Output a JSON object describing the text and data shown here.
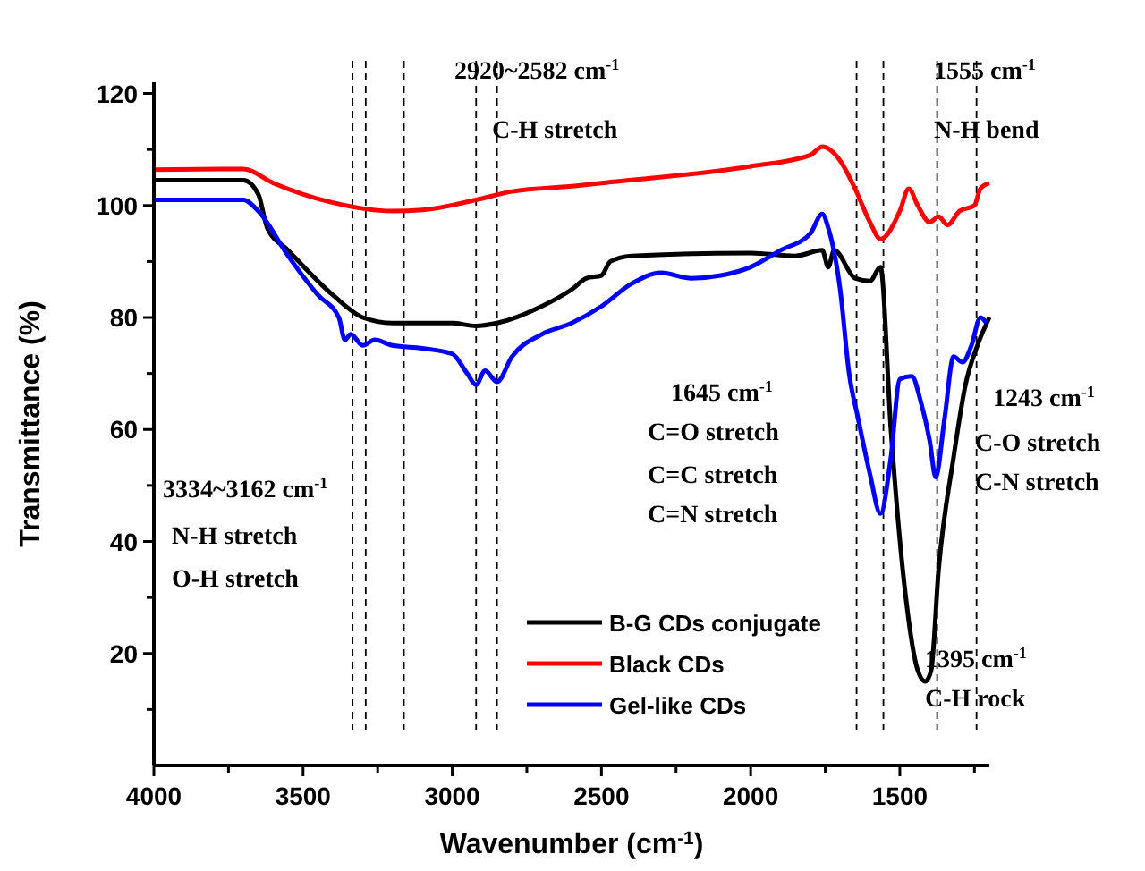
{
  "chart_data": {
    "type": "line",
    "xlabel": "Wavenumber (cm$^{-1}$)",
    "ylabel": "Transmittance (%)",
    "xlim": [
      4000,
      1200
    ],
    "ylim": [
      0,
      122
    ],
    "xticks": [
      4000,
      {
        "value": 3750,
        "label": null
      },
      3500,
      {
        "value": 3250,
        "label": null
      },
      3000,
      {
        "value": 2750,
        "label": null
      },
      2500,
      {
        "value": 2250,
        "label": null
      },
      2000,
      {
        "value": 1750,
        "label": null
      },
      1500,
      {
        "value": 1250,
        "label": null
      }
    ],
    "yticks": [
      {
        "value": 10,
        "label": null
      },
      20,
      {
        "value": 30,
        "label": null
      },
      40,
      {
        "value": 50,
        "label": null
      },
      60,
      {
        "value": 70,
        "label": null
      },
      80,
      {
        "value": 90,
        "label": null
      },
      100,
      {
        "value": 110,
        "label": null
      },
      120
    ],
    "grid": false,
    "legend": "bottom",
    "marker": "none",
    "line_style": "solid",
    "series": [
      {
        "name": "B-G CDs conjugate",
        "color": "#000000",
        "x": [
          4000,
          3700,
          3650,
          3620,
          3550,
          3400,
          3300,
          3200,
          3000,
          2920,
          2850,
          2700,
          2600,
          2550,
          2500,
          2470,
          2400,
          2000,
          1850,
          1760,
          1740,
          1720,
          1650,
          1600,
          1565,
          1530,
          1480,
          1440,
          1415,
          1395,
          1370,
          1320,
          1280,
          1240,
          1200
        ],
        "values": [
          104.5,
          104.5,
          102,
          96,
          92,
          84,
          80,
          79,
          79,
          78.5,
          79,
          82,
          85,
          87,
          87.5,
          90,
          91,
          91.5,
          91,
          92,
          89,
          92,
          87,
          86.5,
          89,
          60,
          30,
          17,
          15,
          17,
          35,
          55,
          68,
          75,
          80
        ]
      },
      {
        "name": "Black CDs",
        "color": "#ff0000",
        "x": [
          4000,
          3700,
          3600,
          3400,
          3200,
          3100,
          2920,
          2800,
          2582,
          2500,
          2000,
          1800,
          1760,
          1700,
          1650,
          1600,
          1565,
          1500,
          1470,
          1440,
          1400,
          1370,
          1340,
          1300,
          1250,
          1230,
          1200
        ],
        "values": [
          106.4,
          106.5,
          104,
          100.5,
          99,
          99.2,
          101,
          102.5,
          103.5,
          104,
          107,
          109,
          110.5,
          108,
          103,
          97,
          94,
          99,
          103,
          100,
          97,
          98,
          96.5,
          99,
          100,
          103,
          104
        ]
      },
      {
        "name": "Gel-like CDs",
        "color": "#0000ff",
        "x": [
          4000,
          3700,
          3650,
          3550,
          3450,
          3380,
          3360,
          3340,
          3300,
          3260,
          3200,
          3100,
          3000,
          2950,
          2920,
          2890,
          2850,
          2800,
          2700,
          2600,
          2500,
          2400,
          2300,
          2200,
          2100,
          2000,
          1900,
          1800,
          1760,
          1740,
          1700,
          1670,
          1640,
          1600,
          1565,
          1530,
          1500,
          1460,
          1430,
          1400,
          1380,
          1350,
          1320,
          1290,
          1260,
          1230,
          1210
        ],
        "values": [
          101,
          101,
          99,
          91,
          84,
          80,
          76,
          77,
          75,
          76,
          75,
          74.5,
          73.5,
          70,
          68,
          70.5,
          68.5,
          73,
          77,
          79,
          82,
          86,
          88,
          87,
          87.5,
          89,
          92,
          95,
          98.5,
          96,
          85,
          70,
          62,
          52,
          45,
          55,
          69,
          69.5,
          65,
          58,
          51.5,
          62,
          73,
          72,
          75,
          80,
          79
        ]
      }
    ],
    "ref_lines": [
      {
        "axis": "x",
        "value": 3334,
        "color": "#000000",
        "line_style": "dashed"
      },
      {
        "axis": "x",
        "value": 3290,
        "color": "#000000",
        "line_style": "dashed"
      },
      {
        "axis": "x",
        "value": 3162,
        "color": "#000000",
        "line_style": "dashed"
      },
      {
        "axis": "x",
        "value": 2920,
        "color": "#000000",
        "line_style": "dashed"
      },
      {
        "axis": "x",
        "value": 2850,
        "color": "#000000",
        "line_style": "dashed"
      },
      {
        "axis": "x",
        "value": 1645,
        "color": "#000000",
        "line_style": "dashed"
      },
      {
        "axis": "x",
        "value": 1555,
        "color": "#000000",
        "line_style": "dashed"
      },
      {
        "axis": "x",
        "value": 1375,
        "color": "#000000",
        "line_style": "dashed"
      },
      {
        "axis": "x",
        "value": 1243,
        "color": "#000000",
        "line_style": "dashed"
      }
    ],
    "annotations": [
      "2920~2582 cm$^{-1}$",
      "C-H stretch",
      "1555 cm$^{-1}$",
      "N-H bend",
      "1645 cm$^{-1}$",
      "C=O stretch",
      "C=C stretch",
      "C=N stretch",
      "3334~3162 cm$^{-1}$",
      "N-H stretch",
      "O-H stretch",
      "1243 cm$^{-1}$",
      "C-O stretch",
      "C-N stretch",
      "1395 cm$^{-1}$",
      "C-H rock"
    ]
  }
}
